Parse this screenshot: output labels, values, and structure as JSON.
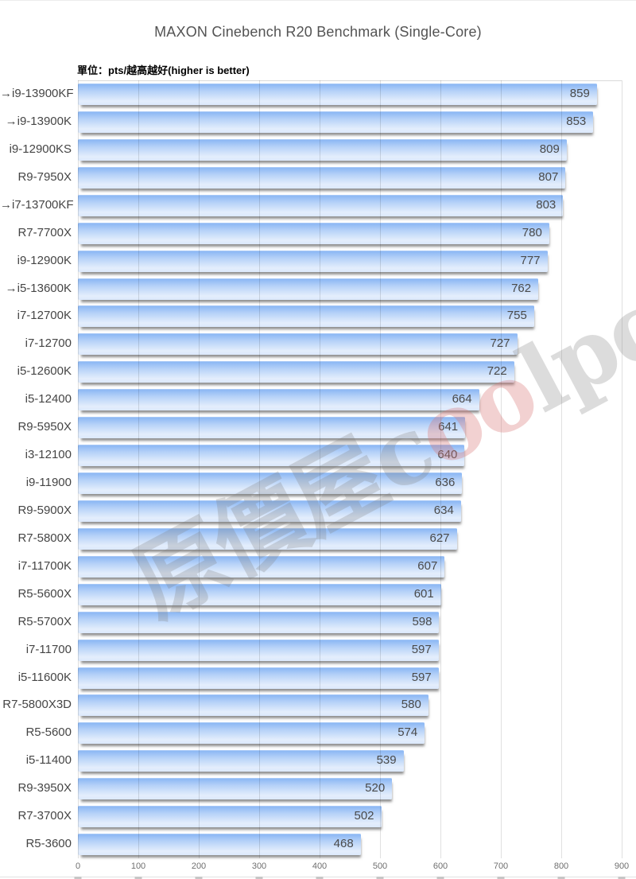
{
  "chart_data": {
    "type": "bar",
    "orientation": "horizontal",
    "title": "MAXON Cinebench R20 Benchmark (Single-Core)",
    "subtitle": "單位：pts/越高越好(higher is better)",
    "arrow_prefix": "→",
    "categories": [
      "i9-13900KF",
      "i9-13900K",
      "i9-12900KS",
      "R9-7950X",
      "i7-13700KF",
      "R7-7700X",
      "i9-12900K",
      "i5-13600K",
      "i7-12700K",
      "i7-12700",
      "i5-12600K",
      "i5-12400",
      "R9-5950X",
      "i3-12100",
      "i9-11900",
      "R9-5900X",
      "R7-5800X",
      "i7-11700K",
      "R5-5600X",
      "R5-5700X",
      "i7-11700",
      "i5-11600K",
      "R7-5800X3D",
      "R5-5600",
      "i5-11400",
      "R9-3950X",
      "R7-3700X",
      "R5-3600"
    ],
    "arrows": [
      true,
      true,
      false,
      false,
      true,
      false,
      false,
      true,
      false,
      false,
      false,
      false,
      false,
      false,
      false,
      false,
      false,
      false,
      false,
      false,
      false,
      false,
      false,
      false,
      false,
      false,
      false,
      false
    ],
    "values": [
      859,
      853,
      809,
      807,
      803,
      780,
      777,
      762,
      755,
      727,
      722,
      664,
      641,
      640,
      636,
      634,
      627,
      607,
      601,
      598,
      597,
      597,
      580,
      574,
      539,
      520,
      502,
      468
    ],
    "xlabel": "",
    "ylabel": "",
    "xlim": [
      0,
      900
    ],
    "xticks": [
      0,
      100,
      200,
      300,
      400,
      500,
      600,
      700,
      800,
      900
    ],
    "grid": "vertical gridlines at every 100, visible through bars",
    "legend": "none",
    "value_labels": "inside bar, right aligned",
    "bar_colors": {
      "edge_highlight": "#f7faff",
      "top": "#8cb8f4",
      "mid": "#b6d2f8",
      "light": "#e4eefc",
      "bottom": "#dbe9fc"
    },
    "label_color": "#454545",
    "value_color": "#4a4a4a",
    "tick_color": "#6f6f6f",
    "gridline_color": "#d9d9d9"
  },
  "watermark": {
    "full_text": "原價屋coolpc",
    "part1": "原價屋c",
    "part2": "oo",
    "part3": "lpc",
    "gray_color": "rgba(130,130,130,0.28)",
    "pink_color": "rgba(216,120,120,0.34)"
  }
}
